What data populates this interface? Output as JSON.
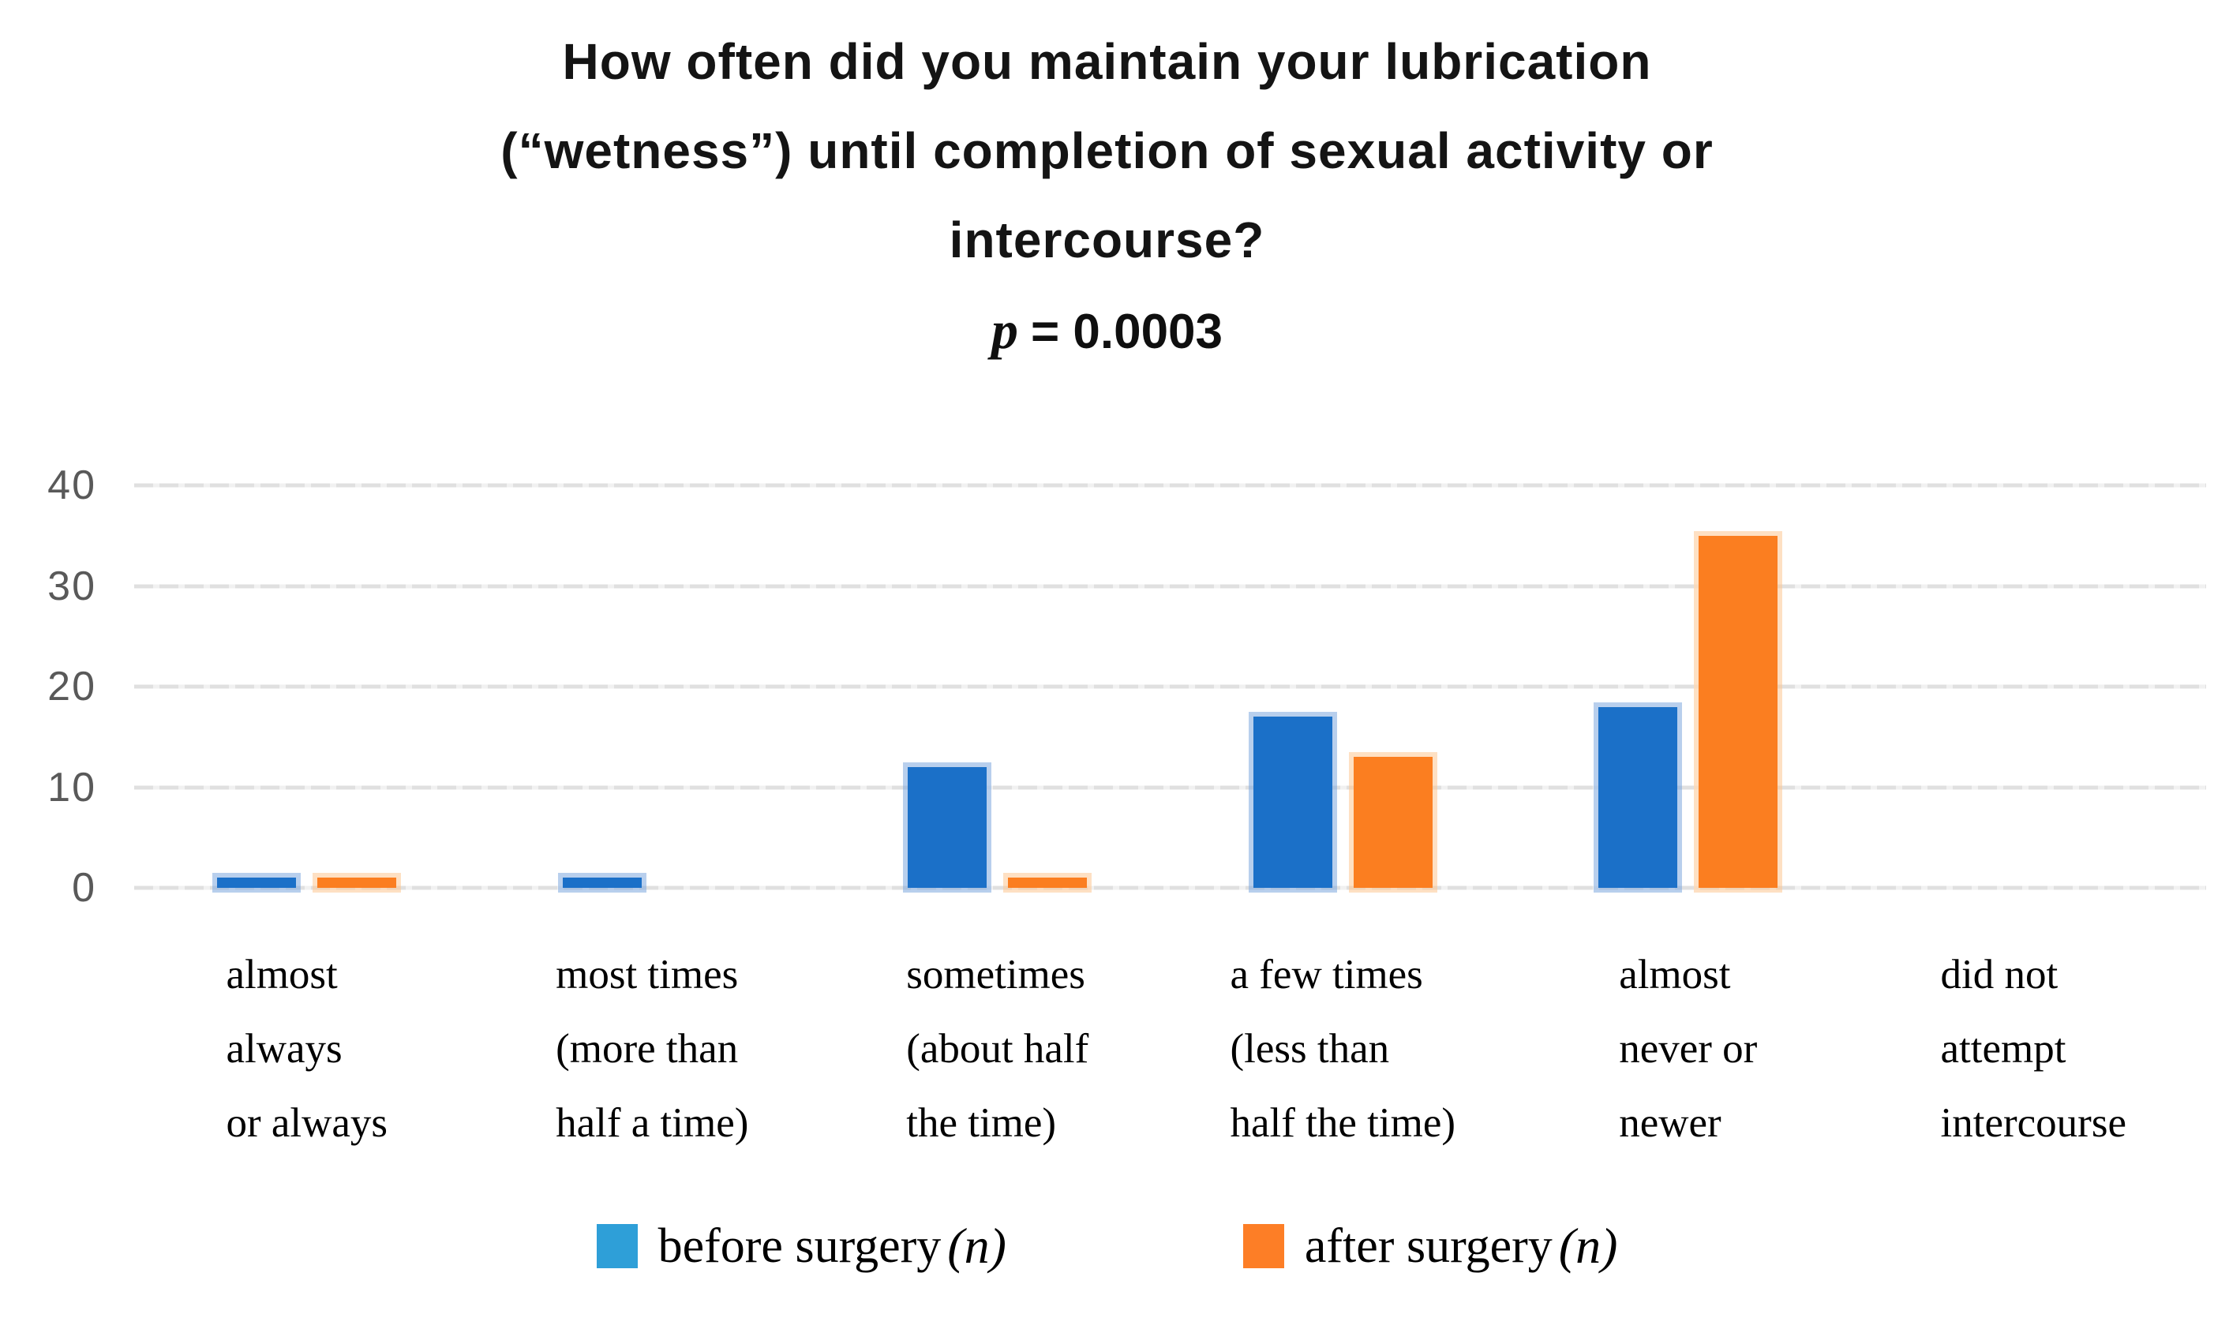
{
  "title": {
    "lines": [
      "How often did you maintain your  lubrication",
      "(“wetness”) until completion of sexual activity or",
      "intercourse?"
    ],
    "p_symbol": "p",
    "p_rest": "= 0.0003"
  },
  "chart_data": {
    "type": "bar",
    "title": "How often did you maintain your lubrication (“wetness”) until completion of sexual activity or intercourse?",
    "subtitle": "p = 0.0003",
    "categories": [
      "almost always or always",
      "most times (more than half a time)",
      "sometimes (about half the time)",
      "a few times (less than half the time)",
      "almost never or newer",
      "did not attempt intercourse"
    ],
    "category_label_lines": [
      [
        "almost",
        "always",
        "or always"
      ],
      [
        "most times",
        "(more than",
        "half a time)"
      ],
      [
        "sometimes",
        "(about half",
        "the time)"
      ],
      [
        "a few times",
        "(less than",
        "half the time)"
      ],
      [
        "almost",
        "never or",
        "newer"
      ],
      [
        "did not",
        "attempt",
        "intercourse"
      ]
    ],
    "series": [
      {
        "name": "before surgery (n)",
        "color": "#1B70C8",
        "legend_color": "#2E9FD8",
        "values": [
          1,
          1,
          12,
          17,
          18,
          0
        ]
      },
      {
        "name": "after surgery (n)",
        "color": "#FB7E20",
        "legend_color": "#FD7E26",
        "values": [
          1,
          0,
          1,
          13,
          35,
          0
        ]
      }
    ],
    "ylim": [
      0,
      40
    ],
    "yticks": [
      40,
      30,
      20,
      10,
      0
    ],
    "grid": true,
    "gridline_color": "#e0e0e0",
    "axis_tick_color": "#595959",
    "legend_position": "bottom"
  },
  "legend": [
    {
      "label": "before surgery",
      "n_label": "(n)"
    },
    {
      "label": "after surgery",
      "n_label": "(n)"
    }
  ]
}
